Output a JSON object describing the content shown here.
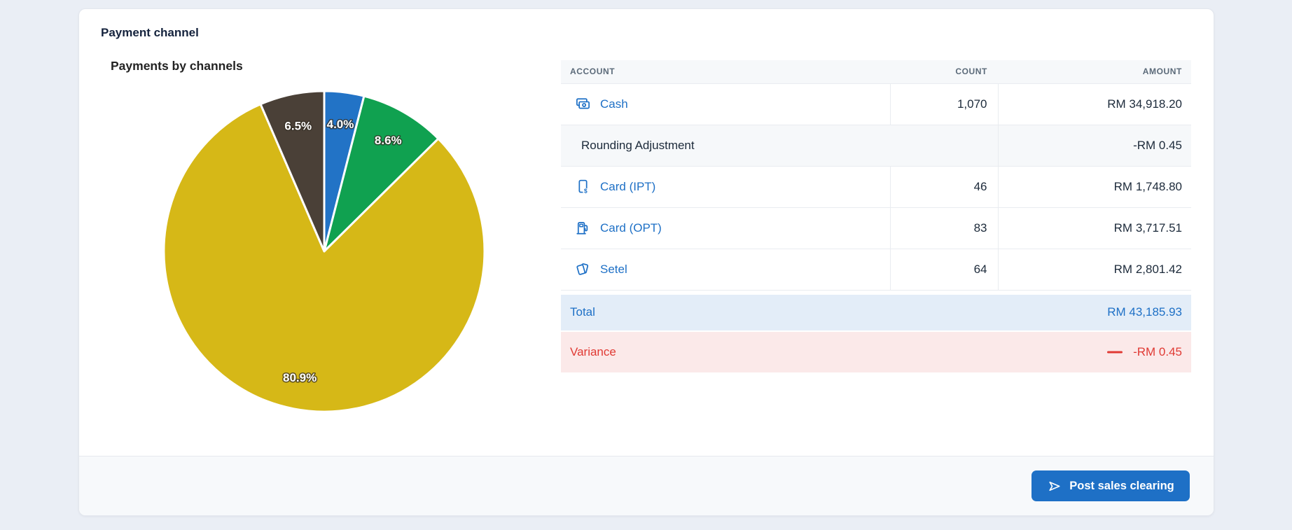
{
  "page": {
    "title": "Payment channel"
  },
  "chart_data": {
    "type": "pie",
    "title": "Payments by channels",
    "direction": "clockwise",
    "start_angle_deg": 0,
    "label_radius_ratio": 0.8,
    "legend": "none",
    "slices": [
      {
        "label": "4.0%",
        "value": 4.0,
        "color": "#2273c6"
      },
      {
        "label": "8.6%",
        "value": 8.6,
        "color": "#10a150"
      },
      {
        "label": "80.9%",
        "value": 80.9,
        "color": "#d6b817"
      },
      {
        "label": "6.5%",
        "value": 6.5,
        "color": "#4a4037"
      }
    ]
  },
  "table": {
    "columns": [
      {
        "key": "account",
        "label": "ACCOUNT",
        "align": "left"
      },
      {
        "key": "count",
        "label": "COUNT",
        "align": "right"
      },
      {
        "key": "amount",
        "label": "AMOUNT",
        "align": "right"
      }
    ],
    "rows": [
      {
        "icon": "cash-icon",
        "account": "Cash",
        "count": "1,070",
        "amount": "RM 34,918.20",
        "type": "link"
      },
      {
        "icon": null,
        "account": "Rounding Adjustment",
        "count": "",
        "amount": "-RM 0.45",
        "type": "muted"
      },
      {
        "icon": "mobile-payment-icon",
        "account": "Card (IPT)",
        "count": "46",
        "amount": "RM 1,748.80",
        "type": "link"
      },
      {
        "icon": "fuel-pump-icon",
        "account": "Card (OPT)",
        "count": "83",
        "amount": "RM 3,717.51",
        "type": "link"
      },
      {
        "icon": "cards-icon",
        "account": "Setel",
        "count": "64",
        "amount": "RM 2,801.42",
        "type": "link"
      }
    ],
    "total": {
      "label": "Total",
      "amount": "RM 43,185.93"
    },
    "variance": {
      "label": "Variance",
      "amount": "-RM 0.45"
    }
  },
  "footer": {
    "post_button_label": "Post sales clearing"
  },
  "colors": {
    "page_bg": "#eaeef5",
    "card_bg": "#ffffff",
    "footer_bg": "#f7f9fb",
    "link_blue": "#1e70c6",
    "text_dark": "#1c2a3a",
    "header_gray": "#5b6a79",
    "total_bg": "#e3edf8",
    "variance_bg": "#fbe9e9",
    "variance_red": "#e03a34",
    "button_bg": "#1e70c6",
    "border": "#e9ecf0"
  }
}
